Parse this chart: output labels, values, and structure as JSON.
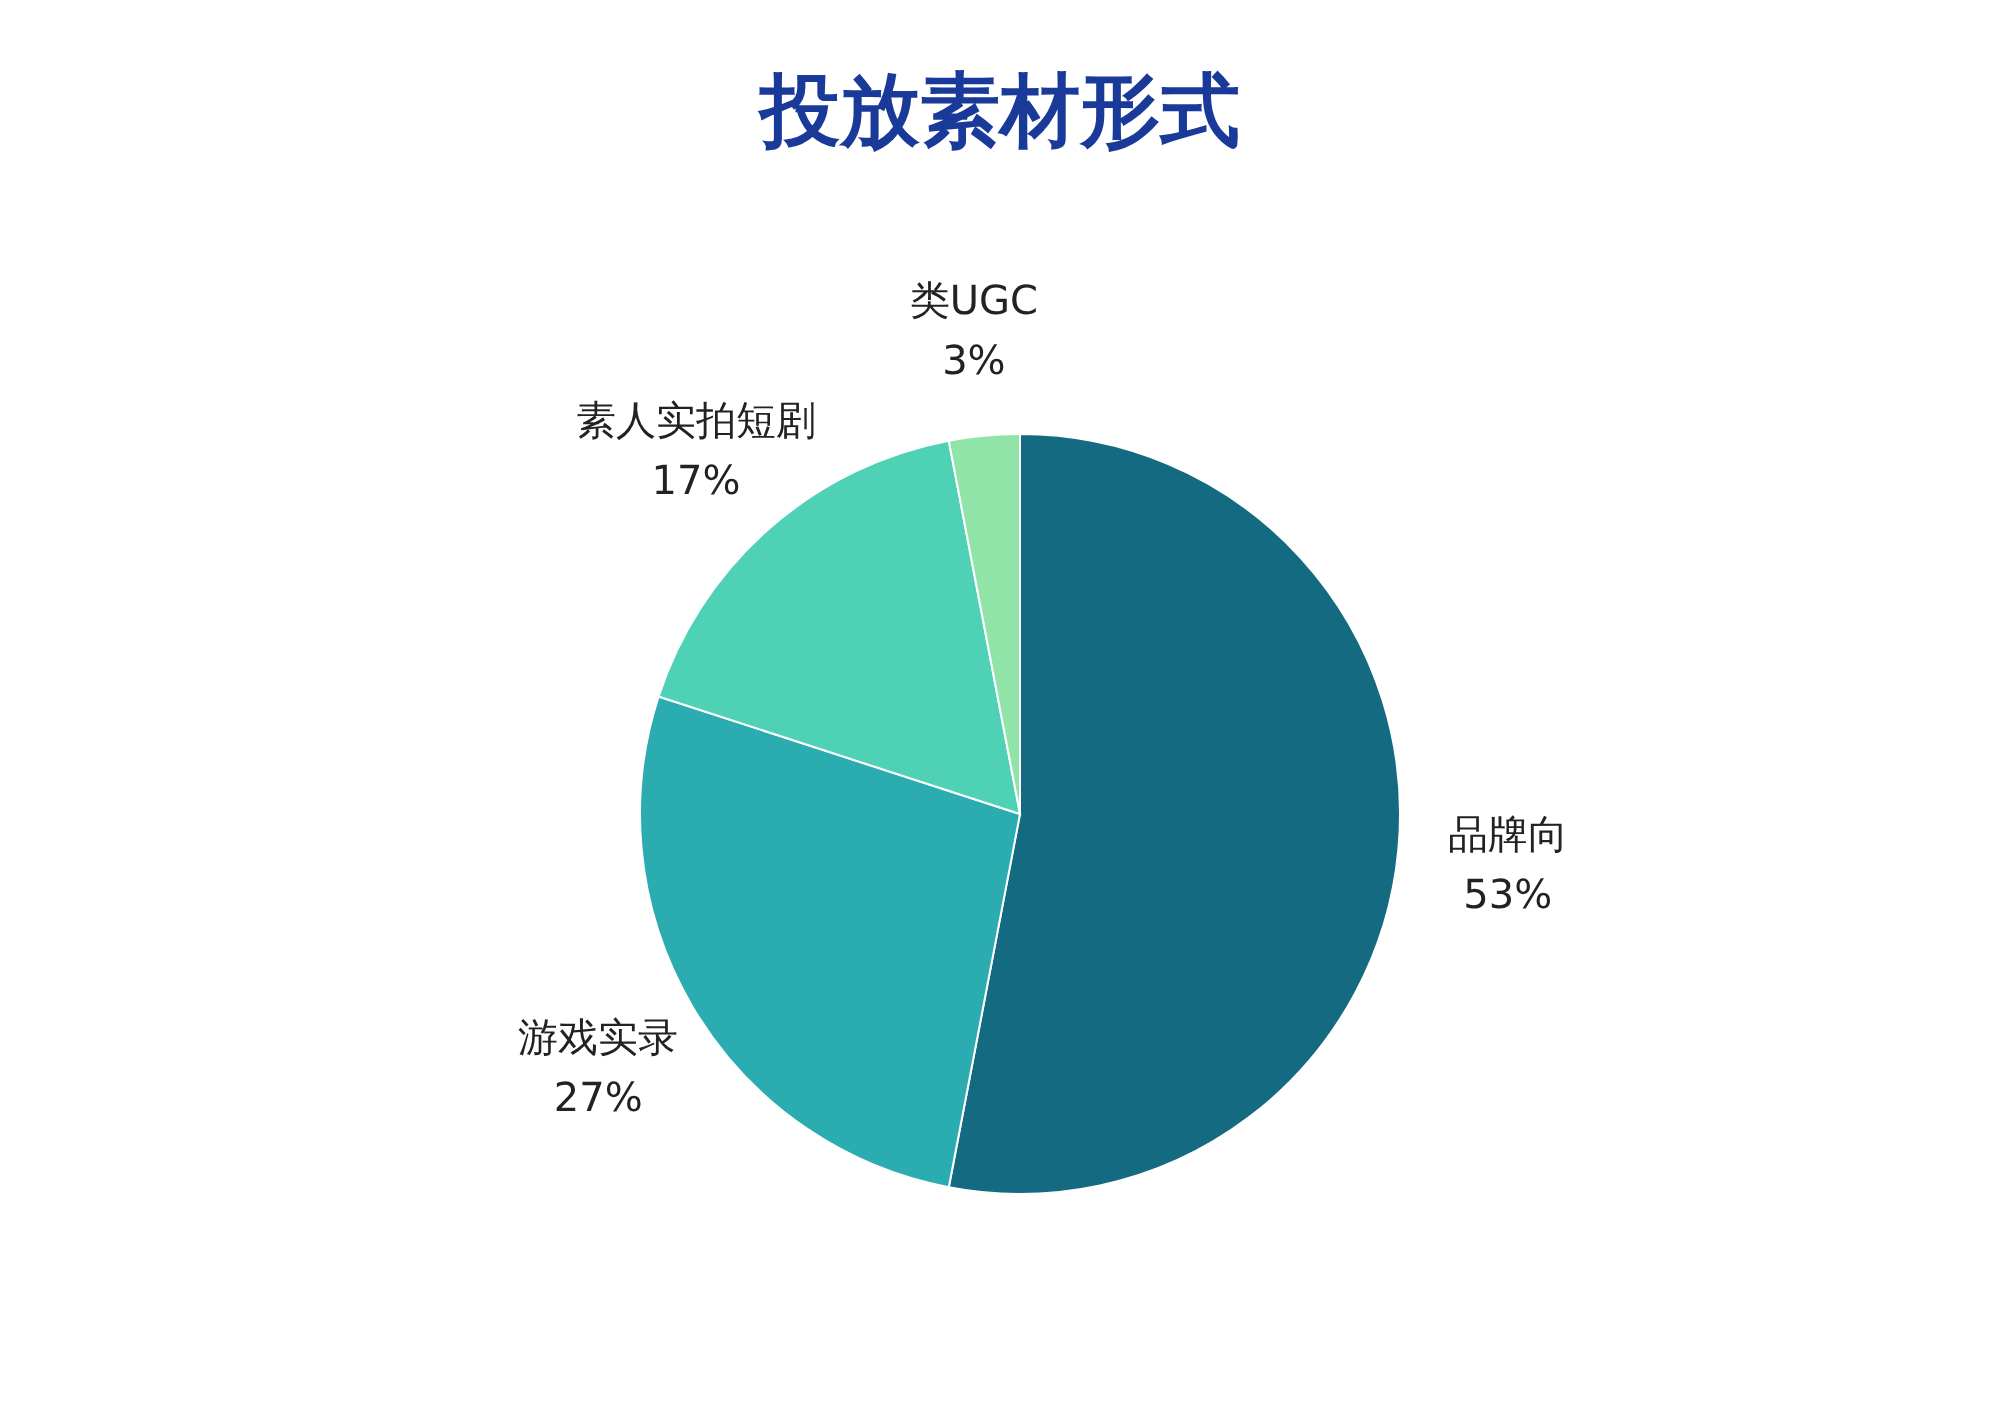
{
  "chart_data": {
    "type": "pie",
    "title": "投放素材形式",
    "categories": [
      "品牌向",
      "游戏实录",
      "素人实拍短剧",
      "类UGC"
    ],
    "values": [
      53,
      27,
      17,
      3
    ],
    "value_labels": [
      "53%",
      "27%",
      "17%",
      "3%"
    ],
    "colors": [
      "#146a80",
      "#2aacb0",
      "#4fd1b5",
      "#90e4a8"
    ],
    "legend": false
  }
}
